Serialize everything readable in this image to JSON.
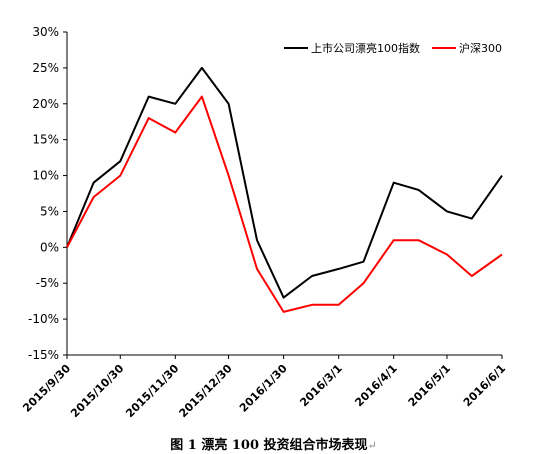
{
  "chart_data": {
    "type": "line",
    "title": "",
    "xlabel": "",
    "ylabel": "",
    "x": [
      "2015/9/30",
      "2015/10/15",
      "2015/10/30",
      "2015/11/15",
      "2015/11/30",
      "2015/12/15",
      "2015/12/30",
      "2016/1/15",
      "2016/1/30",
      "2016/2/15",
      "2016/3/1",
      "2016/3/15",
      "2016/4/1",
      "2016/4/15",
      "2016/5/1",
      "2016/5/15",
      "2016/6/1"
    ],
    "x_ticks": [
      "2015/9/30",
      "2015/10/30",
      "2015/11/30",
      "2015/12/30",
      "2016/1/30",
      "2016/3/1",
      "2016/4/1",
      "2016/5/1",
      "2016/6/1"
    ],
    "y_ticks": [
      "30%",
      "25%",
      "20%",
      "15%",
      "10%",
      "5%",
      "0%",
      "-5%",
      "-10%",
      "-15%"
    ],
    "ylim": [
      -15,
      30
    ],
    "grid": false,
    "legend_position": "top-right",
    "series": [
      {
        "name": "上市公司漂亮100指数",
        "color": "#000000",
        "values": [
          0,
          9,
          12,
          21,
          20,
          25,
          20,
          1,
          -7,
          -4,
          -3,
          -2,
          9,
          8,
          5,
          4,
          10
        ]
      },
      {
        "name": "沪深300",
        "color": "#ff0000",
        "values": [
          0,
          7,
          10,
          18,
          16,
          21,
          10,
          -3,
          -9,
          -8,
          -8,
          -5,
          1,
          1,
          -1,
          -4,
          -1
        ]
      }
    ]
  },
  "caption": {
    "text": "图 1  漂亮 100 投资组合市场表现",
    "mark": "↵"
  }
}
